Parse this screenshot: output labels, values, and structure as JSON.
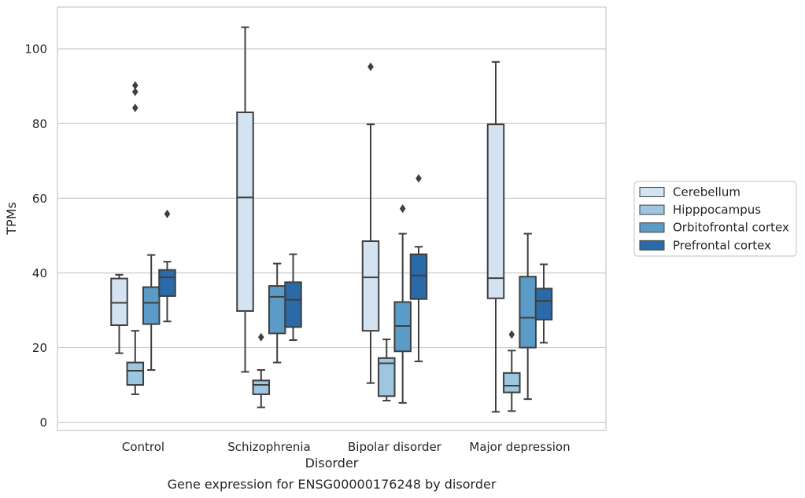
{
  "chart_data": {
    "type": "boxplot",
    "title": "",
    "caption": "Gene expression for ENSG00000176248 by disorder",
    "xlabel": "Disorder",
    "ylabel": "TPMs",
    "ylim": [
      -2,
      111
    ],
    "yticks": [
      0,
      20,
      40,
      60,
      80,
      100
    ],
    "grid": "horizontal",
    "legend": "right-outside",
    "categories": [
      "Control",
      "Schizophrenia",
      "Bipolar disorder",
      "Major depression"
    ],
    "series": [
      {
        "name": "Cerebellum",
        "color": "#d4e3f2",
        "boxes": [
          {
            "whisker_low": 18.5,
            "q1": 26,
            "median": 32,
            "q3": 38.5,
            "whisker_high": 39.5,
            "outliers": []
          },
          {
            "whisker_low": 13.5,
            "q1": 29.8,
            "median": 60.2,
            "q3": 83,
            "whisker_high": 105.8,
            "outliers": []
          },
          {
            "whisker_low": 10.5,
            "q1": 24.5,
            "median": 38.8,
            "q3": 48.5,
            "whisker_high": 79.8,
            "outliers": [
              95.2
            ]
          },
          {
            "whisker_low": 2.8,
            "q1": 33.2,
            "median": 38.6,
            "q3": 79.8,
            "whisker_high": 96.5,
            "outliers": []
          }
        ]
      },
      {
        "name": "Hipppocampus",
        "color": "#9dc6e0",
        "boxes": [
          {
            "whisker_low": 7.5,
            "q1": 10,
            "median": 13.8,
            "q3": 16,
            "whisker_high": 24.5,
            "outliers": [
              84.2,
              88.5,
              90.2
            ]
          },
          {
            "whisker_low": 4,
            "q1": 7.5,
            "median": 10,
            "q3": 11.2,
            "whisker_high": 14,
            "outliers": [
              22.8
            ]
          },
          {
            "whisker_low": 5.8,
            "q1": 7,
            "median": 15.8,
            "q3": 17.2,
            "whisker_high": 22.2,
            "outliers": []
          },
          {
            "whisker_low": 3,
            "q1": 8,
            "median": 9.8,
            "q3": 13.2,
            "whisker_high": 19.2,
            "outliers": [
              23.5
            ]
          }
        ]
      },
      {
        "name": "Orbitofrontal cortex",
        "color": "#5b9bc8",
        "boxes": [
          {
            "whisker_low": 14,
            "q1": 26.3,
            "median": 32,
            "q3": 36.2,
            "whisker_high": 44.8,
            "outliers": []
          },
          {
            "whisker_low": 16,
            "q1": 23.8,
            "median": 33.6,
            "q3": 36.5,
            "whisker_high": 42.5,
            "outliers": []
          },
          {
            "whisker_low": 5.2,
            "q1": 19,
            "median": 25.8,
            "q3": 32.2,
            "whisker_high": 50.5,
            "outliers": [
              57.2
            ]
          },
          {
            "whisker_low": 6.2,
            "q1": 20,
            "median": 28,
            "q3": 39,
            "whisker_high": 50.5,
            "outliers": []
          }
        ]
      },
      {
        "name": "Prefrontal cortex",
        "color": "#2b6aa9",
        "boxes": [
          {
            "whisker_low": 27,
            "q1": 33.8,
            "median": 38.8,
            "q3": 40.8,
            "whisker_high": 43,
            "outliers": [
              55.8
            ]
          },
          {
            "whisker_low": 22,
            "q1": 25.5,
            "median": 32.8,
            "q3": 37.5,
            "whisker_high": 45,
            "outliers": []
          },
          {
            "whisker_low": 16.3,
            "q1": 33,
            "median": 39.3,
            "q3": 45,
            "whisker_high": 47,
            "outliers": [
              65.3
            ]
          },
          {
            "whisker_low": 21.3,
            "q1": 27.5,
            "median": 32.5,
            "q3": 35.8,
            "whisker_high": 42.3,
            "outliers": []
          }
        ]
      }
    ]
  }
}
